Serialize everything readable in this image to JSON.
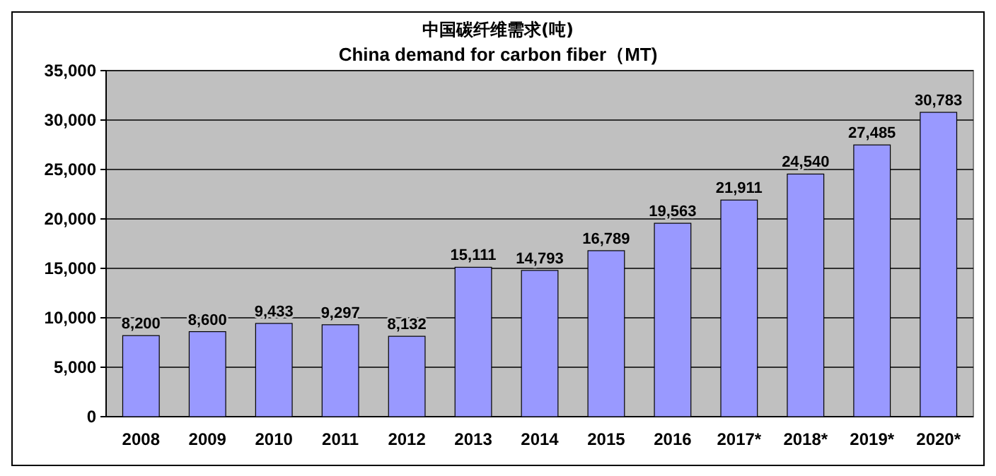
{
  "chart_data": {
    "type": "bar",
    "title": "中国碳纤维需求(吨)",
    "subtitle": "China demand for carbon fiber（MT)",
    "categories": [
      "2008",
      "2009",
      "2010",
      "2011",
      "2012",
      "2013",
      "2014",
      "2015",
      "2016",
      "2017*",
      "2018*",
      "2019*",
      "2020*"
    ],
    "values": [
      8200,
      8600,
      9433,
      9297,
      8132,
      15111,
      14793,
      16789,
      19563,
      21911,
      24540,
      27485,
      30783
    ],
    "value_labels": [
      "8,200",
      "8,600",
      "9,433",
      "9,297",
      "8,132",
      "15,111",
      "14,793",
      "16,789",
      "19,563",
      "21,911",
      "24,540",
      "27,485",
      "30,783"
    ],
    "color": "#9999ff",
    "grid": "y",
    "ylim": [
      0,
      35000
    ],
    "yticks": [
      {
        "value": 0,
        "label": "0"
      },
      {
        "value": 5000,
        "label": "5,000"
      },
      {
        "value": 10000,
        "label": "10,000"
      },
      {
        "value": 15000,
        "label": "15,000"
      },
      {
        "value": 20000,
        "label": "20,000"
      },
      {
        "value": 25000,
        "label": "25,000"
      },
      {
        "value": 30000,
        "label": "30,000"
      },
      {
        "value": 35000,
        "label": "35,000"
      }
    ]
  }
}
